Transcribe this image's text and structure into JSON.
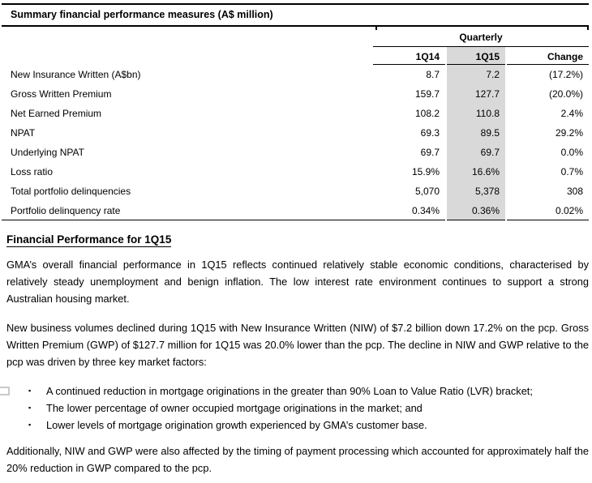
{
  "table": {
    "title": "Summary financial performance measures (A$ million)",
    "group_header": "Quarterly",
    "columns": [
      "1Q14",
      "1Q15",
      "Change"
    ],
    "rows": [
      {
        "label": "New Insurance Written (A$bn)",
        "q14": "8.7",
        "q15": "7.2",
        "change": "(17.2%)"
      },
      {
        "label": "Gross Written Premium",
        "q14": "159.7",
        "q15": "127.7",
        "change": "(20.0%)"
      },
      {
        "label": "Net Earned Premium",
        "q14": "108.2",
        "q15": "110.8",
        "change": "2.4%"
      },
      {
        "label": "NPAT",
        "q14": "69.3",
        "q15": "89.5",
        "change": "29.2%"
      },
      {
        "label": "Underlying NPAT",
        "q14": "69.7",
        "q15": "69.7",
        "change": "0.0%"
      },
      {
        "label": "Loss ratio",
        "q14": "15.9%",
        "q15": "16.6%",
        "change": "0.7%"
      },
      {
        "label": "Total portfolio delinquencies",
        "q14": "5,070",
        "q15": "5,378",
        "change": "308"
      },
      {
        "label": "Portfolio delinquency rate",
        "q14": "0.34%",
        "q15": "0.36%",
        "change": "0.02%"
      }
    ],
    "highlight_color": "#d9d9d9",
    "rule_color": "#000000"
  },
  "section": {
    "heading": "Financial Performance for 1Q15",
    "bullet_marker": "▪",
    "para1": "GMA’s overall financial performance in 1Q15 reflects continued relatively stable economic conditions, characterised by relatively steady unemployment and benign inflation. The low interest rate environment continues to support a strong Australian housing market.",
    "para2": "New business volumes declined during 1Q15 with New Insurance Written (NIW) of $7.2 billion down 17.2% on the pcp. Gross Written Premium (GWP) of $127.7 million for 1Q15 was 20.0% lower than the pcp. The decline in NIW and GWP relative to the pcp was driven by three key market factors:",
    "bullets": [
      "A continued reduction in mortgage originations in the greater than 90% Loan to Value Ratio (LVR) bracket;",
      "The lower percentage of owner occupied mortgage originations in the market; and",
      "Lower levels of mortgage origination growth experienced by GMA’s customer base."
    ],
    "para3": "Additionally, NIW and GWP were also affected by the timing of payment processing which accounted for approximately half the 20% reduction in GWP compared to the pcp."
  }
}
